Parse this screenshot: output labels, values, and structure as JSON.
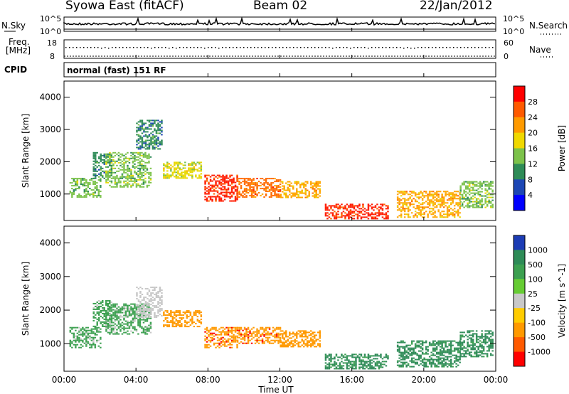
{
  "header": {
    "title": "Syowa East (fitACF)",
    "beam": "Beam 02",
    "date": "22/Jan/2012"
  },
  "noise_panel": {
    "left_label": "N.Sky",
    "right_label": "N.Search",
    "left_ticks": [
      "10^5",
      "10^0"
    ],
    "right_ticks": [
      "10^5",
      "10^0"
    ]
  },
  "freq_panel": {
    "left_label_line1": "Freq.",
    "left_label_line2": "[MHz]",
    "right_label": "Nave",
    "left_ticks": [
      "18",
      "8"
    ],
    "right_ticks": [
      "60",
      "0"
    ]
  },
  "cpid_panel": {
    "label": "CPID",
    "text": "normal (fast) 151 RF"
  },
  "chart_data": [
    {
      "type": "heatmap",
      "name": "power",
      "ylabel": "Slant Range [km]",
      "yticks": [
        "4000",
        "3000",
        "2000",
        "1000"
      ],
      "ylim": [
        180,
        4500
      ],
      "colorbar_label": "Power [dB]",
      "colorbar_ticks": [
        "28",
        "24",
        "20",
        "16",
        "12",
        "8",
        "4"
      ],
      "colorbar_colors": [
        "#ff0000",
        "#ff5a00",
        "#ff9a00",
        "#f0d800",
        "#7cc24a",
        "#2e8b57",
        "#1c46b4",
        "#0000ff"
      ],
      "regions": [
        {
          "x": [
            0.3,
            2.0
          ],
          "y": [
            900,
            1500
          ],
          "value": 12
        },
        {
          "x": [
            1.6,
            2.6
          ],
          "y": [
            1500,
            2300
          ],
          "value": 8
        },
        {
          "x": [
            2.3,
            4.8
          ],
          "y": [
            1200,
            2300
          ],
          "value": 12
        },
        {
          "x": [
            4.0,
            5.4
          ],
          "y": [
            2400,
            3300
          ],
          "value": 8
        },
        {
          "x": [
            5.5,
            7.6
          ],
          "y": [
            1500,
            2000
          ],
          "value": 16
        },
        {
          "x": [
            7.8,
            9.6
          ],
          "y": [
            800,
            1600
          ],
          "value": 28
        },
        {
          "x": [
            9.6,
            12.0
          ],
          "y": [
            900,
            1500
          ],
          "value": 24
        },
        {
          "x": [
            12.0,
            14.2
          ],
          "y": [
            900,
            1400
          ],
          "value": 20
        },
        {
          "x": [
            14.5,
            18.0
          ],
          "y": [
            250,
            700
          ],
          "value": 28
        },
        {
          "x": [
            18.5,
            22.0
          ],
          "y": [
            300,
            1100
          ],
          "value": 20
        },
        {
          "x": [
            22.0,
            23.8
          ],
          "y": [
            600,
            1400
          ],
          "value": 12
        }
      ]
    },
    {
      "type": "heatmap",
      "name": "velocity",
      "ylabel": "Slant Range [km]",
      "yticks": [
        "4000",
        "3000",
        "2000",
        "1000"
      ],
      "ylim": [
        180,
        4500
      ],
      "xlabel": "Time UT",
      "xticks": [
        "00:00",
        "04:00",
        "08:00",
        "12:00",
        "16:00",
        "20:00",
        "00:00"
      ],
      "colorbar_label": "Velocity [m s^-1]",
      "colorbar_ticks": [
        "1000",
        "500",
        "100",
        "25",
        "-25",
        "-100",
        "-500",
        "-1000"
      ],
      "colorbar_colors": [
        "#1c3cb4",
        "#2e8b57",
        "#3ca050",
        "#66cc33",
        "#c8c8c8",
        "#ffcc00",
        "#ff9900",
        "#ff5a00",
        "#ff0000"
      ],
      "regions": [
        {
          "x": [
            0.3,
            2.0
          ],
          "y": [
            900,
            1500
          ],
          "value": 100
        },
        {
          "x": [
            1.6,
            2.6
          ],
          "y": [
            1500,
            2300
          ],
          "value": 100
        },
        {
          "x": [
            2.3,
            4.8
          ],
          "y": [
            1300,
            2200
          ],
          "value": 100
        },
        {
          "x": [
            4.0,
            5.4
          ],
          "y": [
            1800,
            2700
          ],
          "value": 0
        },
        {
          "x": [
            5.5,
            7.6
          ],
          "y": [
            1500,
            2000
          ],
          "value": -100
        },
        {
          "x": [
            7.8,
            9.6
          ],
          "y": [
            900,
            1500
          ],
          "value": -300
        },
        {
          "x": [
            9.6,
            12.0
          ],
          "y": [
            1000,
            1500
          ],
          "value": -300
        },
        {
          "x": [
            12.0,
            14.2
          ],
          "y": [
            900,
            1400
          ],
          "value": -100
        },
        {
          "x": [
            14.5,
            18.0
          ],
          "y": [
            250,
            700
          ],
          "value": 500
        },
        {
          "x": [
            18.5,
            22.0
          ],
          "y": [
            300,
            1100
          ],
          "value": 500
        },
        {
          "x": [
            22.0,
            23.8
          ],
          "y": [
            600,
            1400
          ],
          "value": 500
        }
      ]
    }
  ]
}
